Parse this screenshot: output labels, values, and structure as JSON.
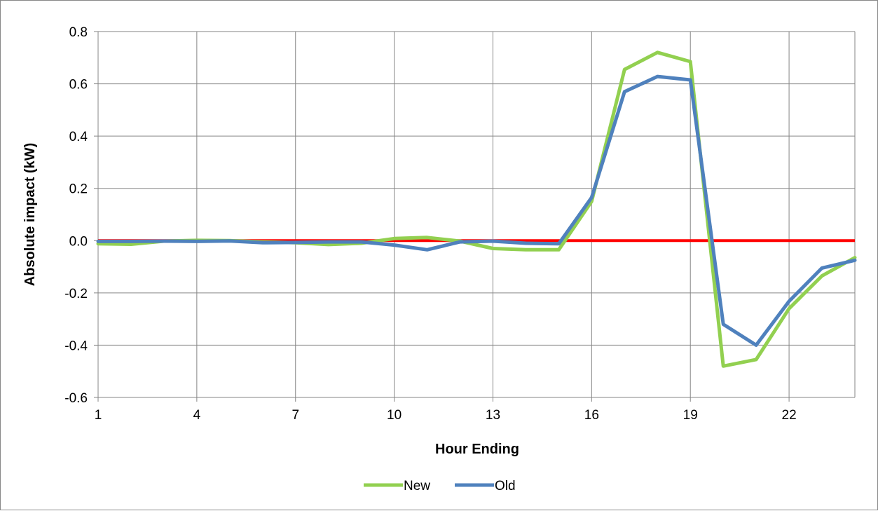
{
  "chart_data": {
    "type": "line",
    "title": "",
    "xlabel": "Hour Ending",
    "ylabel": "Absolute impact (kW)",
    "x": [
      1,
      2,
      3,
      4,
      5,
      6,
      7,
      8,
      9,
      10,
      11,
      12,
      13,
      14,
      15,
      16,
      17,
      18,
      19,
      20,
      21,
      22,
      23,
      24
    ],
    "x_ticks": [
      1,
      4,
      7,
      10,
      13,
      16,
      19,
      22
    ],
    "x_tick_labels": [
      "1",
      "4",
      "7",
      "10",
      "13",
      "16",
      "19",
      "22"
    ],
    "xlim": [
      1,
      24
    ],
    "ylim": [
      -0.6,
      0.8
    ],
    "y_ticks": [
      -0.6,
      -0.4,
      -0.2,
      0.0,
      0.2,
      0.4,
      0.6,
      0.8
    ],
    "y_tick_labels": [
      "-0.6",
      "-0.4",
      "-0.2",
      "0.0",
      "0.2",
      "0.4",
      "0.6",
      "0.8"
    ],
    "grid": true,
    "legend_position": "bottom",
    "reference_line": {
      "y": 0,
      "color": "#ff0000"
    },
    "series": [
      {
        "name": "New",
        "color": "#92d050",
        "values": [
          -0.012,
          -0.014,
          -0.002,
          0.001,
          0.0,
          -0.005,
          -0.008,
          -0.015,
          -0.01,
          0.008,
          0.012,
          -0.002,
          -0.03,
          -0.035,
          -0.035,
          0.15,
          0.655,
          0.72,
          0.685,
          -0.48,
          -0.455,
          -0.26,
          -0.135,
          -0.065
        ]
      },
      {
        "name": "Old",
        "color": "#4f81bd",
        "values": [
          -0.003,
          -0.003,
          -0.002,
          -0.003,
          -0.001,
          -0.008,
          -0.007,
          -0.005,
          -0.005,
          -0.017,
          -0.035,
          -0.005,
          -0.002,
          -0.01,
          -0.012,
          0.165,
          0.57,
          0.628,
          0.615,
          -0.32,
          -0.4,
          -0.232,
          -0.105,
          -0.075
        ]
      }
    ]
  }
}
